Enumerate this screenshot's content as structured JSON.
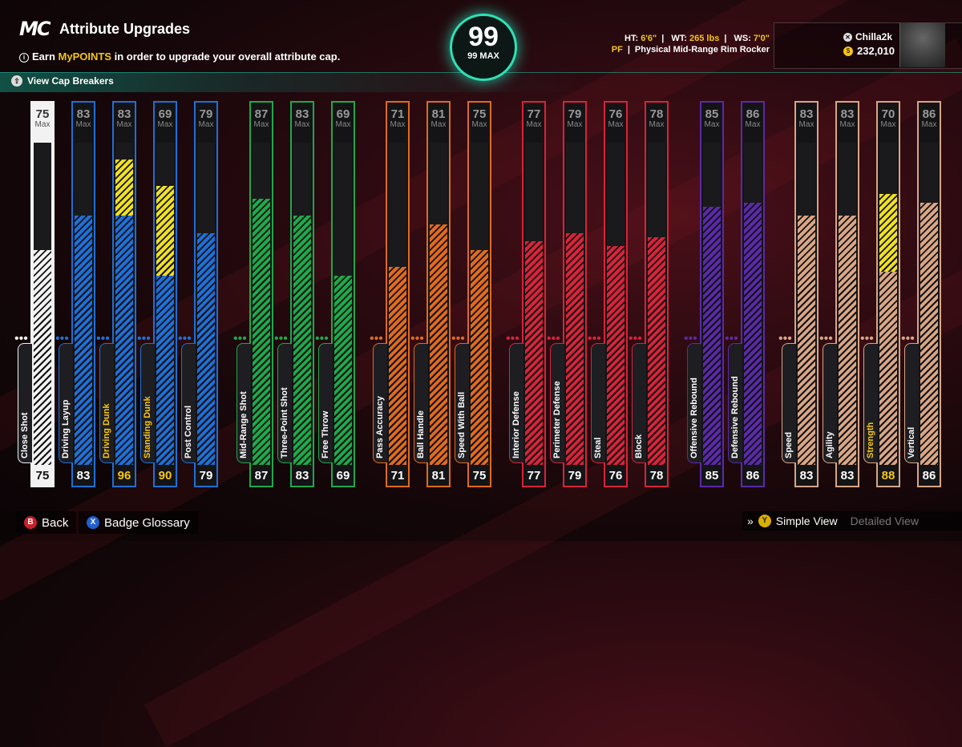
{
  "header": {
    "logo": "MC",
    "title": "Attribute Upgrades",
    "info_prefix": "Earn ",
    "info_highlight": "MyPOINTS",
    "info_suffix": " in order to upgrade your overall attribute cap.",
    "cap_breakers_label": "View Cap Breakers"
  },
  "overall": {
    "value": "99",
    "max_label": "99 MAX"
  },
  "player": {
    "ht_label": "HT:",
    "ht": "6'6\"",
    "wt_label": "WT:",
    "wt": "265 lbs",
    "ws_label": "WS:",
    "ws": "7'0\"",
    "position": "PF",
    "archetype": "Physical Mid-Range Rim Rocker",
    "gamertag": "Chilla2k",
    "vc": "232,010"
  },
  "max_label": "Max",
  "colors": {
    "blue": "#1f6fd6",
    "green": "#1fa84a",
    "orange": "#e06a1e",
    "red": "#d8233a",
    "purple": "#5a2aa8",
    "tan": "#d9a584",
    "boost": "#f0e020",
    "white": "#f2f2f2"
  },
  "attributes": [
    {
      "name": "Close Shot",
      "current": 75,
      "max": 75,
      "base": 75,
      "color": "white"
    },
    {
      "name": "Driving Layup",
      "current": 83,
      "max": 83,
      "base": 83,
      "color": "blue"
    },
    {
      "name": "Driving Dunk",
      "current": 96,
      "max": 83,
      "base": 83,
      "color": "blue"
    },
    {
      "name": "Standing Dunk",
      "current": 90,
      "max": 69,
      "base": 69,
      "color": "blue"
    },
    {
      "name": "Post Control",
      "current": 79,
      "max": 79,
      "base": 79,
      "color": "blue"
    },
    {
      "name": "Mid-Range Shot",
      "current": 87,
      "max": 87,
      "base": 87,
      "color": "green"
    },
    {
      "name": "Three-Point Shot",
      "current": 83,
      "max": 83,
      "base": 83,
      "color": "green"
    },
    {
      "name": "Free Throw",
      "current": 69,
      "max": 69,
      "base": 69,
      "color": "green"
    },
    {
      "name": "Pass Accuracy",
      "current": 71,
      "max": 71,
      "base": 71,
      "color": "orange"
    },
    {
      "name": "Ball Handle",
      "current": 81,
      "max": 81,
      "base": 81,
      "color": "orange"
    },
    {
      "name": "Speed With Ball",
      "current": 75,
      "max": 75,
      "base": 75,
      "color": "orange"
    },
    {
      "name": "Interior Defense",
      "current": 77,
      "max": 77,
      "base": 77,
      "color": "red"
    },
    {
      "name": "Perimeter Defense",
      "current": 79,
      "max": 79,
      "base": 79,
      "color": "red"
    },
    {
      "name": "Steal",
      "current": 76,
      "max": 76,
      "base": 76,
      "color": "red"
    },
    {
      "name": "Block",
      "current": 78,
      "max": 78,
      "base": 78,
      "color": "red"
    },
    {
      "name": "Offensive Rebound",
      "current": 85,
      "max": 85,
      "base": 85,
      "color": "purple"
    },
    {
      "name": "Defensive Rebound",
      "current": 86,
      "max": 86,
      "base": 86,
      "color": "purple"
    },
    {
      "name": "Speed",
      "current": 83,
      "max": 83,
      "base": 83,
      "color": "tan"
    },
    {
      "name": "Agility",
      "current": 83,
      "max": 83,
      "base": 83,
      "color": "tan"
    },
    {
      "name": "Strength",
      "current": 88,
      "max": 70,
      "base": 70,
      "color": "tan"
    },
    {
      "name": "Vertical",
      "current": 86,
      "max": 86,
      "base": 86,
      "color": "tan"
    }
  ],
  "footer": {
    "back_btn": "B",
    "back_label": "Back",
    "glossary_btn": "X",
    "glossary_label": "Badge Glossary",
    "view_btn": "Y",
    "simple_view": "Simple View",
    "detailed_view": "Detailed View"
  }
}
